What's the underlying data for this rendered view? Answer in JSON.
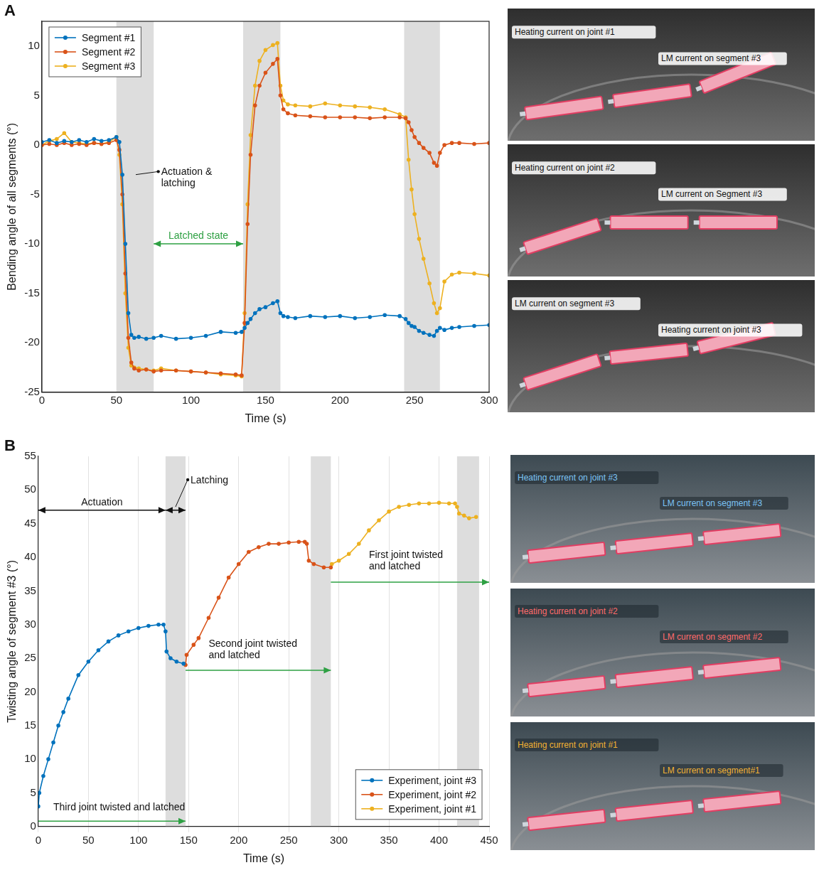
{
  "chart_data": [
    {
      "panel_label": "A",
      "type": "line",
      "x_label": "Time (s)",
      "y_label": "Bending angle of all segments (°)",
      "xlim": [
        0,
        300
      ],
      "xticks": [
        0,
        50,
        100,
        150,
        200,
        250,
        300
      ],
      "ylim": [
        -25,
        12.5
      ],
      "yticks": [
        -25,
        -20,
        -15,
        -10,
        -5,
        0,
        5,
        10
      ],
      "grid": false,
      "legend": "upper left",
      "shaded": [
        [
          50,
          75
        ],
        [
          135,
          160
        ],
        [
          243,
          267
        ]
      ],
      "series": [
        {
          "name": "Segment #1",
          "color": "#0072BD",
          "marker": "circle",
          "line_style": "solid",
          "x": [
            0,
            5,
            10,
            15,
            20,
            25,
            30,
            35,
            40,
            45,
            50,
            52,
            54,
            56,
            58,
            60,
            62,
            65,
            70,
            75,
            80,
            90,
            100,
            110,
            120,
            130,
            134,
            136,
            138,
            140,
            143,
            146,
            150,
            155,
            158,
            160,
            162,
            165,
            170,
            180,
            190,
            200,
            210,
            220,
            230,
            240,
            244,
            246,
            248,
            250,
            253,
            256,
            260,
            263,
            265,
            267,
            270,
            275,
            280,
            290,
            300
          ],
          "values": [
            0.3,
            0.5,
            0.2,
            0.4,
            0.3,
            0.5,
            0.3,
            0.6,
            0.4,
            0.5,
            0.8,
            0.3,
            -3,
            -10,
            -17,
            -19.2,
            -19.5,
            -19.4,
            -19.6,
            -19.5,
            -19.3,
            -19.6,
            -19.5,
            -19.3,
            -18.9,
            -19,
            -18.9,
            -18.5,
            -18,
            -17.6,
            -17,
            -16.6,
            -16.4,
            -16,
            -15.8,
            -17,
            -17.3,
            -17.4,
            -17.5,
            -17.3,
            -17.4,
            -17.3,
            -17.5,
            -17.4,
            -17.2,
            -17.3,
            -17.6,
            -18,
            -18.3,
            -18.4,
            -18.8,
            -19,
            -19.2,
            -19.3,
            -18.8,
            -18.5,
            -18.7,
            -18.5,
            -18.4,
            -18.3,
            -18.2
          ]
        },
        {
          "name": "Segment #2",
          "color": "#D95319",
          "marker": "circle",
          "line_style": "solid",
          "x": [
            0,
            5,
            10,
            15,
            20,
            25,
            30,
            35,
            40,
            45,
            50,
            52,
            54,
            56,
            58,
            60,
            62,
            65,
            70,
            75,
            80,
            90,
            100,
            110,
            120,
            130,
            134,
            136,
            138,
            140,
            143,
            146,
            150,
            155,
            158,
            160,
            162,
            165,
            170,
            180,
            190,
            200,
            210,
            220,
            230,
            240,
            244,
            246,
            248,
            250,
            253,
            256,
            260,
            263,
            265,
            267,
            270,
            275,
            280,
            290,
            300
          ],
          "values": [
            0,
            0.1,
            0,
            0.2,
            0,
            0.1,
            0,
            0.2,
            0.1,
            0.2,
            0.5,
            -0.5,
            -5,
            -13,
            -19.5,
            -22,
            -22.6,
            -22.8,
            -22.7,
            -22.9,
            -22.8,
            -22.8,
            -22.9,
            -23,
            -23.1,
            -23.2,
            -23.3,
            -18,
            -8,
            -1,
            4,
            6,
            7.3,
            8.2,
            8.7,
            5,
            3.6,
            3.2,
            3,
            2.9,
            2.8,
            2.8,
            2.8,
            2.7,
            2.8,
            2.8,
            2.7,
            2.3,
            1.5,
            0.8,
            0.2,
            -0.3,
            -0.8,
            -1.8,
            -2.1,
            -0.8,
            0,
            0.2,
            0.2,
            0.1,
            0.2
          ]
        },
        {
          "name": "Segment #3",
          "color": "#EDB120",
          "marker": "circle",
          "line_style": "solid",
          "x": [
            0,
            5,
            10,
            15,
            20,
            25,
            30,
            35,
            40,
            45,
            50,
            52,
            54,
            56,
            58,
            60,
            62,
            65,
            70,
            75,
            80,
            90,
            100,
            110,
            120,
            130,
            134,
            136,
            138,
            140,
            143,
            146,
            150,
            155,
            158,
            160,
            162,
            165,
            170,
            180,
            190,
            200,
            210,
            220,
            230,
            240,
            244,
            246,
            248,
            250,
            253,
            256,
            260,
            263,
            265,
            267,
            270,
            275,
            280,
            290,
            300
          ],
          "values": [
            0,
            0.4,
            0.6,
            1.2,
            0.3,
            0.2,
            0.1,
            0.2,
            0.1,
            0.3,
            0.8,
            -1,
            -6,
            -15,
            -20.5,
            -22.3,
            -22.5,
            -22.6,
            -22.7,
            -22.8,
            -22.6,
            -22.8,
            -22.9,
            -23,
            -23.2,
            -23.3,
            -23.4,
            -17,
            -6,
            1,
            6,
            8.5,
            9.6,
            10.1,
            10.3,
            6,
            4.5,
            4.1,
            4,
            3.9,
            4.2,
            4,
            3.9,
            3.8,
            3.6,
            3.1,
            2.8,
            -1.5,
            -4.5,
            -7,
            -9.5,
            -11.5,
            -14,
            -16,
            -17,
            -16.5,
            -13.8,
            -13.1,
            -12.9,
            -13,
            -13.2
          ]
        }
      ],
      "annotations": [
        {
          "text": "Actuation & latching",
          "text_at": [
            80,
            -4.2
          ],
          "point": [
            63,
            -3
          ]
        },
        {
          "text": "Latched state",
          "color": "#2ea043",
          "arrow": {
            "x": [
              75,
              135
            ],
            "y": -10,
            "color": "#2ea043",
            "marker": "double_arrow"
          }
        }
      ]
    },
    {
      "panel_label": "B",
      "type": "line",
      "x_label": "Time (s)",
      "y_label": "Twisting angle of segment #3 (°)",
      "xlim": [
        0,
        450
      ],
      "xticks": [
        0,
        50,
        100,
        150,
        200,
        250,
        300,
        350,
        400,
        450
      ],
      "ylim": [
        0,
        55
      ],
      "yticks": [
        0,
        5,
        10,
        15,
        20,
        25,
        30,
        35,
        40,
        45,
        50,
        55
      ],
      "grid": "x",
      "legend": "lower right",
      "shaded": [
        [
          127,
          147
        ],
        [
          272,
          292
        ],
        [
          418,
          440
        ]
      ],
      "series": [
        {
          "name": "Experiment, joint #3",
          "color": "#0072BD",
          "marker": "circle",
          "line_style": "solid",
          "x": [
            0,
            1,
            5,
            10,
            15,
            20,
            25,
            30,
            40,
            50,
            60,
            70,
            80,
            90,
            100,
            110,
            120,
            125,
            127,
            128,
            132,
            138,
            145
          ],
          "values": [
            3,
            5,
            7.5,
            10,
            12.5,
            15,
            17,
            19,
            22.5,
            24.5,
            26.2,
            27.5,
            28.4,
            29,
            29.5,
            29.8,
            30,
            30,
            29,
            26,
            25,
            24.5,
            24.2
          ]
        },
        {
          "name": "Experiment, joint #2",
          "color": "#D95319",
          "marker": "circle",
          "line_style": "solid",
          "x": [
            147,
            148,
            155,
            160,
            170,
            180,
            190,
            200,
            210,
            220,
            230,
            240,
            250,
            260,
            266,
            268,
            270,
            275,
            285,
            292
          ],
          "values": [
            24,
            25.5,
            27,
            28,
            31,
            34,
            37,
            39,
            40.8,
            41.5,
            42,
            42,
            42.2,
            42.3,
            42.3,
            42,
            39.5,
            39,
            38.5,
            38.5
          ]
        },
        {
          "name": "Experiment, joint #1",
          "color": "#EDB120",
          "marker": "circle",
          "line_style": "solid",
          "x": [
            293,
            300,
            310,
            320,
            330,
            340,
            350,
            360,
            370,
            380,
            390,
            400,
            410,
            416,
            418,
            420,
            425,
            430,
            437
          ],
          "values": [
            39,
            39.5,
            40.5,
            42,
            44,
            45.5,
            46.8,
            47.5,
            47.8,
            48,
            48,
            48.1,
            48,
            48,
            47.5,
            46.5,
            46.2,
            45.8,
            46
          ]
        }
      ],
      "annotations": [
        {
          "text": "Actuation",
          "arrow": {
            "x": [
              0,
              127
            ],
            "y": 47,
            "marker": "double_arrow"
          }
        },
        {
          "text": "Latching",
          "text_at": [
            152,
            51
          ],
          "point": [
            137,
            47.5
          ],
          "arrow": {
            "x": [
              127,
              147
            ],
            "y": 47,
            "marker": "double_arrow"
          }
        },
        {
          "text": "Third joint twisted and latched",
          "text_at": [
            15,
            2.4
          ],
          "arrow": {
            "x": [
              0,
              147
            ],
            "y": 0.8,
            "color": "#2ea043",
            "marker": "arrow"
          }
        },
        {
          "text": "Second joint twisted and latched",
          "text_at": [
            170,
            25
          ],
          "arrow": {
            "x": [
              147,
              292
            ],
            "y": 23.2,
            "color": "#2ea043",
            "marker": "arrow"
          }
        },
        {
          "text": "First joint twisted and latched",
          "text_at": [
            330,
            38.2
          ],
          "arrow": {
            "x": [
              292,
              450
            ],
            "y": 36.3,
            "color": "#2ea043",
            "marker": "arrow"
          }
        }
      ]
    }
  ],
  "photos": {
    "A": [
      [
        "Heating current on joint #1",
        "LM current on segment #3"
      ],
      [
        "Heating current on joint #2",
        "LM current on Segment #3"
      ],
      [
        "LM current on segment #3",
        "Heating current on joint #3"
      ]
    ],
    "B": [
      [
        "Heating current on joint #3",
        "LM current on segment #3"
      ],
      [
        "Heating current on joint #2",
        "LM current on segment #2"
      ],
      [
        "Heating current on joint #1",
        "LM current on segment#1"
      ]
    ]
  }
}
